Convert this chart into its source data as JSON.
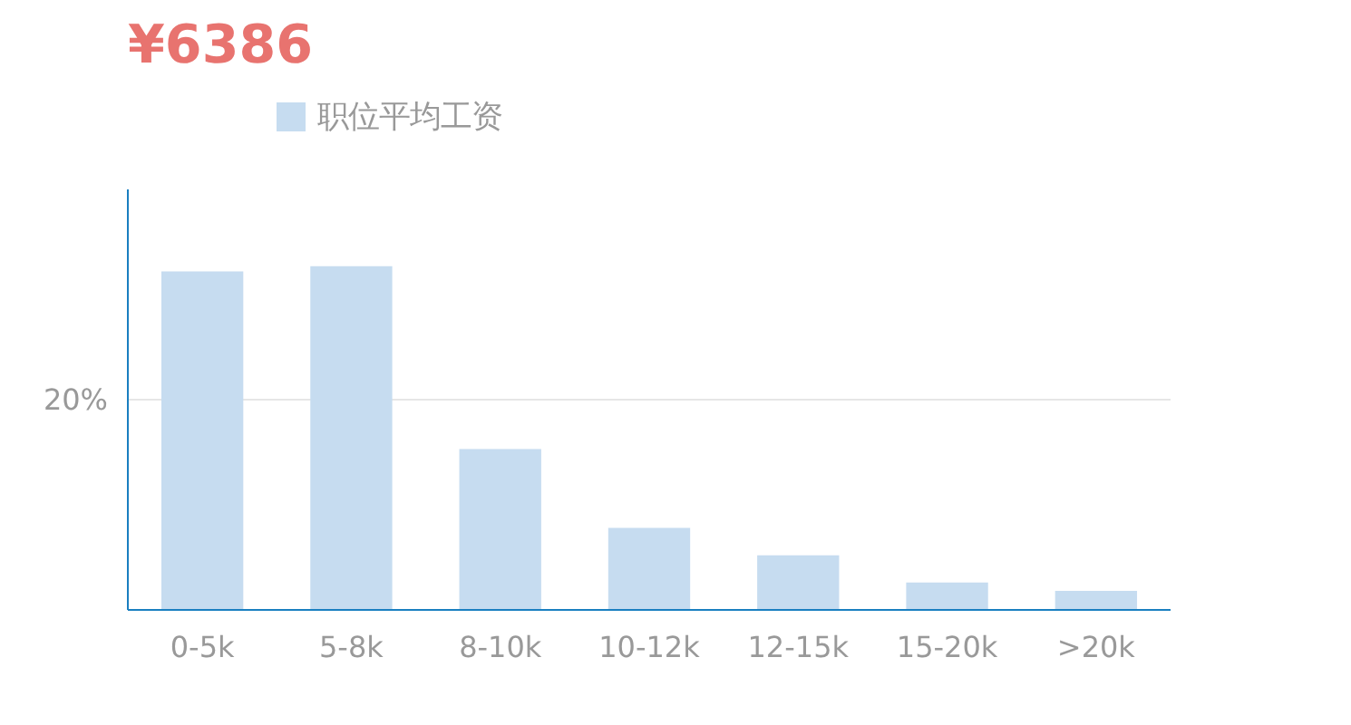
{
  "chart_data": {
    "type": "bar",
    "title": "¥6386",
    "categories": [
      "0-5k",
      "5-8k",
      "8-10k",
      "10-12k",
      "12-15k",
      "15-20k",
      ">20k"
    ],
    "series": [
      {
        "name": "职位平均工资",
        "color": "#c6dcf0",
        "values": [
          32.2,
          32.7,
          15.3,
          7.8,
          5.2,
          2.6,
          1.8
        ]
      }
    ],
    "ylim": [
      0,
      40
    ],
    "yticks": [
      {
        "value": 0,
        "label": null
      },
      {
        "value": 20,
        "label": "20%"
      }
    ],
    "grid": "y",
    "legend": "top"
  }
}
